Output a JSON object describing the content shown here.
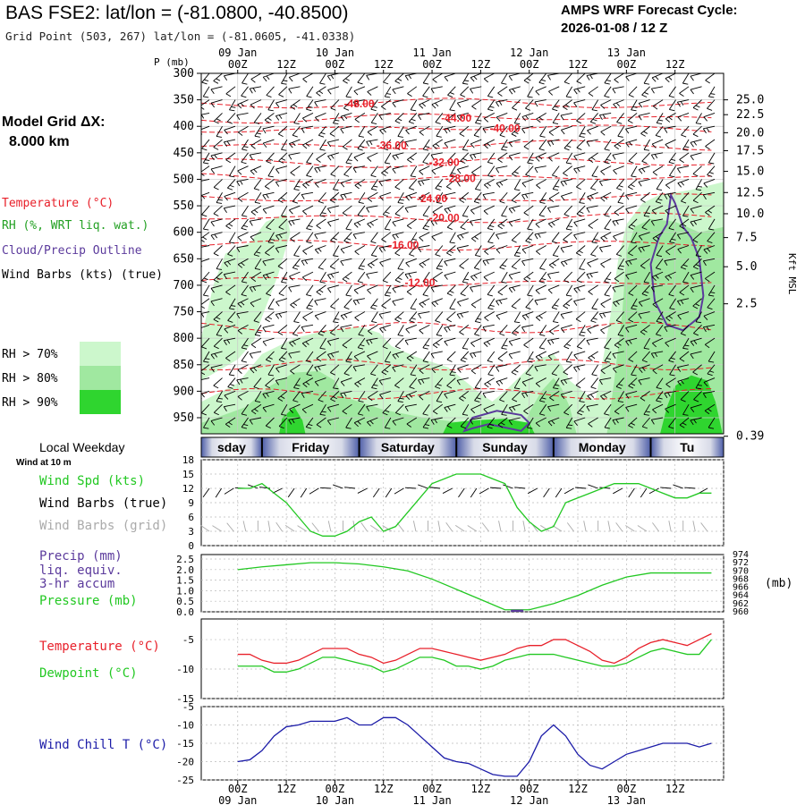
{
  "header": {
    "title": "BAS FSE2:  lat/lon = (-81.0800, -40.8500)",
    "subtitle": "Grid Point (503, 267) lat/lon = (-81.0605, -41.0338)",
    "cycle_label": "AMPS WRF Forecast Cycle:",
    "cycle_value": "2026-01-08 / 12  Z"
  },
  "time_axis": {
    "top_dates": [
      "09 Jan",
      "10 Jan",
      "11 Jan",
      "12 Jan",
      "13 Jan"
    ],
    "top_hours": [
      "00Z",
      "12Z",
      "00Z",
      "12Z",
      "00Z",
      "12Z",
      "00Z",
      "12Z",
      "00Z",
      "12Z"
    ],
    "bottom_hours": [
      "00Z",
      "12Z",
      "00Z",
      "12Z",
      "00Z",
      "12Z",
      "00Z",
      "12Z",
      "00Z",
      "12Z"
    ],
    "bottom_dates": [
      "09 Jan",
      "10 Jan",
      "11 Jan",
      "12 Jan",
      "13 Jan"
    ]
  },
  "left_labels": {
    "p_unit": "P (mb)",
    "model_grid": "Model Grid ΔX:",
    "model_grid_value": "8.000 km",
    "temperature": "Temperature (°C)",
    "rh": "RH (%, WRT liq. wat.)",
    "cloud": "Cloud/Precip Outline",
    "wind_barbs": "Wind Barbs (kts) (true)",
    "rh_legend": [
      "RH > 70%",
      "RH > 80%",
      "RH > 90%"
    ],
    "local_weekday": "Local Weekday",
    "wind_at": "Wind at 10 m",
    "wind_spd": "Wind Spd (kts)",
    "wind_barbs_true": "Wind Barbs (true)",
    "wind_barbs_grid": "Wind Barbs (grid)",
    "precip": "Precip (mm)",
    "liq_equiv": "liq. equiv.",
    "accum": "3-hr accum",
    "pressure": "Pressure (mb)",
    "temp2": "Temperature (°C)",
    "dewpoint": "Dewpoint (°C)",
    "wind_chill": "Wind Chill T (°C)"
  },
  "colors": {
    "temperature": "#e8202a",
    "dewpoint": "#22c822",
    "rh70": "#ccf7cc",
    "rh80": "#a0e8a0",
    "rh90": "#2fd52f",
    "cloud": "#5b3a9c",
    "wind_chill": "#1c1ca8",
    "grid_barbs": "#aaaaaa"
  },
  "chart_data": [
    {
      "type": "heatmap",
      "name": "cross-section",
      "y_ticks_mb": [
        300,
        350,
        400,
        450,
        500,
        550,
        600,
        650,
        700,
        750,
        800,
        850,
        900,
        950
      ],
      "right_axis_label": "Kft MSL",
      "right_ticks": [
        {
          "label": "25.0",
          "mb": 350
        },
        {
          "label": "22.5",
          "mb": 378
        },
        {
          "label": "20.0",
          "mb": 412
        },
        {
          "label": "17.5",
          "mb": 446
        },
        {
          "label": "15.0",
          "mb": 485
        },
        {
          "label": "12.5",
          "mb": 525
        },
        {
          "label": "10.0",
          "mb": 565
        },
        {
          "label": "7.5",
          "mb": 610
        },
        {
          "label": "5.0",
          "mb": 665
        },
        {
          "label": "2.5",
          "mb": 735
        },
        {
          "label": "0.39",
          "mb": 985
        }
      ],
      "temperature_contours": [
        {
          "label": "-48.00",
          "hour": 30,
          "mb": 357
        },
        {
          "label": "-44.00",
          "hour": 54,
          "mb": 384
        },
        {
          "label": "-40.00",
          "hour": 66,
          "mb": 404
        },
        {
          "label": "-36.00",
          "hour": 38,
          "mb": 436
        },
        {
          "label": "-32.00",
          "hour": 51,
          "mb": 468
        },
        {
          "label": "-28.00",
          "hour": 55,
          "mb": 498
        },
        {
          "label": "-24.00",
          "hour": 48,
          "mb": 536
        },
        {
          "label": "-20.00",
          "hour": 51,
          "mb": 573
        },
        {
          "label": "-16.00",
          "hour": 41,
          "mb": 624
        },
        {
          "label": "-12.00",
          "hour": 45,
          "mb": 695
        }
      ],
      "weekdays": [
        "sday",
        "Friday",
        "Saturday",
        "Sunday",
        "Monday",
        "Tu"
      ]
    },
    {
      "type": "line",
      "name": "wind_speed_10m",
      "ylabel": "",
      "y_ticks": [
        0,
        3,
        6,
        9,
        12,
        15,
        18
      ],
      "ylim": [
        0,
        18
      ],
      "x_hours": [
        0,
        3,
        6,
        9,
        12,
        15,
        18,
        21,
        24,
        27,
        30,
        33,
        36,
        39,
        42,
        45,
        48,
        51,
        54,
        57,
        60,
        63,
        66,
        69,
        72,
        75,
        78,
        81,
        84,
        87,
        90,
        93,
        96,
        99,
        102,
        105,
        108,
        111,
        114,
        117
      ],
      "series": [
        {
          "name": "Wind Spd (kts)",
          "values": [
            12,
            12,
            13,
            11,
            9,
            6,
            3,
            2,
            2,
            3,
            5,
            6,
            3,
            4,
            7,
            10,
            13,
            14,
            15,
            15,
            15,
            14,
            13,
            8,
            5,
            3,
            4,
            9,
            10,
            11,
            12,
            13,
            13,
            13,
            12,
            11,
            10,
            10,
            11,
            11
          ]
        }
      ]
    },
    {
      "type": "line",
      "name": "precip_pressure",
      "left_ticks": [
        "0.0",
        "0.5",
        "1.0",
        "1.5",
        "2.0",
        "2.5"
      ],
      "right_ticks": [
        "960",
        "962",
        "964",
        "966",
        "968",
        "970",
        "972",
        "974"
      ],
      "right_unit": "(mb)",
      "pressure_x_hours": [
        0,
        6,
        12,
        18,
        24,
        30,
        36,
        42,
        48,
        54,
        60,
        66,
        72,
        78,
        84,
        90,
        96,
        102,
        108,
        114,
        117
      ],
      "pressure_mb": [
        970.3,
        971.0,
        971.5,
        972.0,
        972.0,
        971.7,
        971.0,
        970.0,
        968.0,
        965.5,
        963.0,
        960.5,
        960.5,
        962.0,
        964.0,
        966.5,
        968.5,
        969.5,
        969.5,
        969.5,
        969.5
      ],
      "precip_mm": [
        {
          "hour": 69,
          "value": 0.1
        }
      ]
    },
    {
      "type": "line",
      "name": "temperature_dewpoint",
      "y_ticks": [
        -5,
        -10,
        -15
      ],
      "ylim": [
        -15,
        -1.5
      ],
      "x_hours": [
        0,
        3,
        6,
        9,
        12,
        15,
        18,
        21,
        24,
        27,
        30,
        33,
        36,
        39,
        42,
        45,
        48,
        51,
        54,
        57,
        60,
        63,
        66,
        69,
        72,
        75,
        78,
        81,
        84,
        87,
        90,
        93,
        96,
        99,
        102,
        105,
        108,
        111,
        114,
        117
      ],
      "series": [
        {
          "name": "Temperature (°C)",
          "values": [
            -7.5,
            -7.5,
            -8.5,
            -9,
            -9,
            -8.5,
            -7.5,
            -6.5,
            -6.5,
            -6.5,
            -7.5,
            -8,
            -9,
            -8.5,
            -7.5,
            -6.5,
            -6.5,
            -7,
            -7.5,
            -8,
            -8.5,
            -8,
            -7.5,
            -6.5,
            -6,
            -6,
            -5,
            -5,
            -6,
            -7,
            -8.5,
            -9,
            -8,
            -6.5,
            -5.5,
            -5,
            -5.5,
            -6,
            -5,
            -4
          ]
        },
        {
          "name": "Dewpoint (°C)",
          "values": [
            -9.5,
            -9.5,
            -9.5,
            -10.5,
            -10.5,
            -10,
            -9,
            -8,
            -8,
            -8.5,
            -9,
            -9.5,
            -10.5,
            -10,
            -9,
            -8,
            -8,
            -8.5,
            -9.5,
            -9.5,
            -10,
            -9.5,
            -8.5,
            -8,
            -7.5,
            -7.5,
            -7.5,
            -8,
            -8.5,
            -9,
            -9.5,
            -9.5,
            -9,
            -8,
            -7,
            -6.5,
            -7,
            -7.5,
            -7.5,
            -5
          ]
        }
      ]
    },
    {
      "type": "line",
      "name": "wind_chill",
      "y_ticks": [
        -5,
        -10,
        -15,
        -20,
        -25
      ],
      "ylim": [
        -25,
        -5
      ],
      "x_hours": [
        0,
        3,
        6,
        9,
        12,
        15,
        18,
        21,
        24,
        27,
        30,
        33,
        36,
        39,
        42,
        45,
        48,
        51,
        54,
        57,
        60,
        63,
        66,
        69,
        72,
        75,
        78,
        81,
        84,
        87,
        90,
        93,
        96,
        99,
        102,
        105,
        108,
        111,
        114,
        117
      ],
      "series": [
        {
          "name": "Wind Chill T (°C)",
          "values": [
            -20,
            -19.5,
            -17,
            -13,
            -10.5,
            -10,
            -9,
            -9,
            -9,
            -8,
            -10,
            -10,
            -8,
            -8,
            -10,
            -13,
            -16,
            -19,
            -20,
            -20.5,
            -22,
            -23.5,
            -24,
            -24,
            -20,
            -13,
            -10,
            -13,
            -18,
            -21,
            -22,
            -20,
            -18,
            -17,
            -16,
            -15,
            -15,
            -15,
            -16,
            -15
          ]
        }
      ]
    }
  ]
}
